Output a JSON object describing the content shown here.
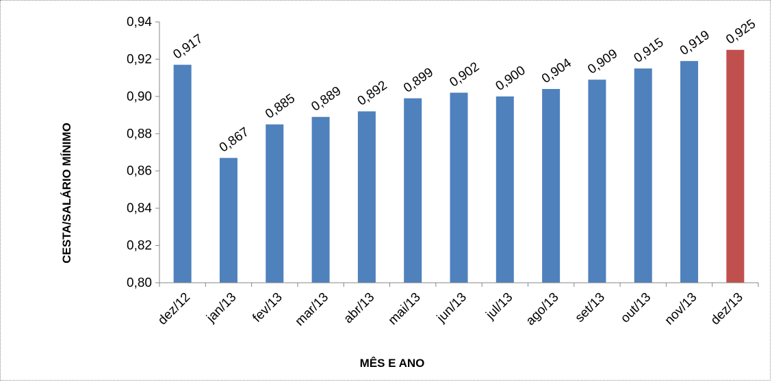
{
  "chart_data": {
    "type": "bar",
    "title": "",
    "xlabel": "MÊS E ANO",
    "ylabel": "CESTA/SALÁRIO MÍNIMO",
    "ylim": [
      0.8,
      0.94
    ],
    "ytick_step": 0.02,
    "ytick_labels": [
      "0,80",
      "0,82",
      "0,84",
      "0,86",
      "0,88",
      "0,90",
      "0,92",
      "0,94"
    ],
    "grid": false,
    "legend": "none",
    "categories": [
      "dez/12",
      "jan/13",
      "fev/13",
      "mar/13",
      "abr/13",
      "mai/13",
      "jun/13",
      "jul/13",
      "ago/13",
      "set/13",
      "out/13",
      "nov/13",
      "dez/13"
    ],
    "values": [
      0.917,
      0.867,
      0.885,
      0.889,
      0.892,
      0.899,
      0.902,
      0.9,
      0.904,
      0.909,
      0.915,
      0.919,
      0.925
    ],
    "data_labels": [
      "0,917",
      "0,867",
      "0,885",
      "0,889",
      "0,892",
      "0,899",
      "0,902",
      "0,900",
      "0,904",
      "0,909",
      "0,915",
      "0,919",
      "0,925"
    ],
    "colors": {
      "bar": "#4f81bd",
      "highlight": "#c0504d",
      "axis": "#868686"
    },
    "highlight_index": 12
  }
}
